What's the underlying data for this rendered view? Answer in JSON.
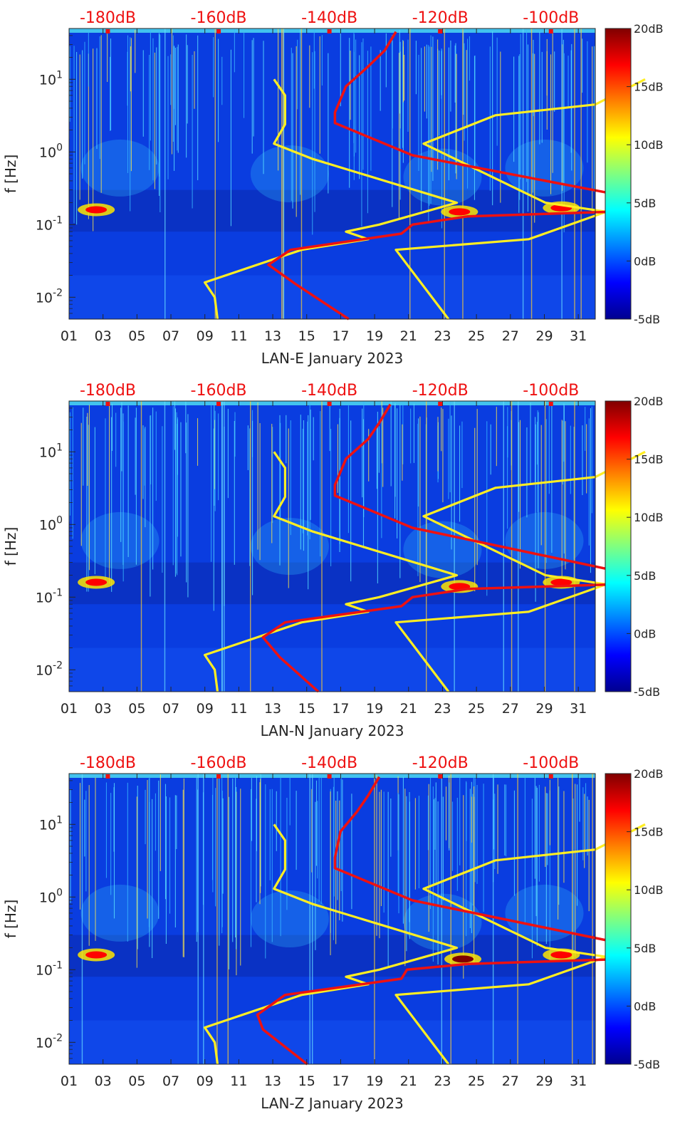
{
  "colors": {
    "background": "#0a3de0",
    "noise_line": "#ffffff",
    "low_noise_model": "#ffee22",
    "psd_curve": "#ee1111",
    "db_scale_text": "#ee1111",
    "axis_text": "#262626"
  },
  "colormap": {
    "stops": [
      "#00008f",
      "#0000ff",
      "#0080ff",
      "#00ffff",
      "#80ff80",
      "#ffff00",
      "#ff8000",
      "#ff0000",
      "#800000"
    ]
  },
  "chart_data": [
    {
      "type": "heatmap",
      "title": "",
      "xlabel": "LAN-E January 2023",
      "ylabel": "f [Hz]",
      "x_ticks": [
        "01",
        "03",
        "05",
        "07",
        "09",
        "11",
        "13",
        "15",
        "17",
        "19",
        "21",
        "23",
        "25",
        "27",
        "29",
        "31"
      ],
      "x_range": [
        1,
        32
      ],
      "y_ticks": [
        "10-2",
        "10-1",
        "100",
        "101"
      ],
      "y_range_hz": [
        0.005,
        50
      ],
      "colorbar": {
        "ticks": [
          "20dB",
          "15dB",
          "10dB",
          "5dB",
          "0dB",
          "-5dB"
        ],
        "range_db": [
          -5,
          20
        ]
      },
      "db_scale": {
        "ticks": [
          "-180dB",
          "-160dB",
          "-140dB",
          "-120dB",
          "-100dB"
        ],
        "range_db": [
          -187,
          -92
        ]
      },
      "hotspots": [
        {
          "day": 2.6,
          "freq": 0.16,
          "db": 18
        },
        {
          "day": 24.0,
          "freq": 0.15,
          "db": 18
        },
        {
          "day": 30.0,
          "freq": 0.17,
          "db": 16
        }
      ],
      "low_noise_model": {
        "left": [
          [
            -160.2,
            0.005
          ],
          [
            -160.7,
            0.01
          ],
          [
            -162.5,
            0.016
          ],
          [
            -145,
            0.045
          ],
          [
            -133,
            0.063
          ],
          [
            -137,
            0.08
          ],
          [
            -131,
            0.1
          ],
          [
            -117,
            0.2
          ],
          [
            -143,
            0.8
          ],
          [
            -150,
            1.3
          ],
          [
            -148,
            2.4
          ],
          [
            -148,
            6
          ],
          [
            -150,
            10
          ]
        ],
        "right": [
          [
            -118.5,
            0.005
          ],
          [
            -128,
            0.045
          ],
          [
            -104,
            0.063
          ],
          [
            -90,
            0.15
          ],
          [
            -101,
            0.2
          ],
          [
            -123,
            1.3
          ],
          [
            -110,
            3.2
          ],
          [
            -92,
            4.5
          ],
          [
            -83,
            10
          ]
        ]
      },
      "psd_curve": [
        [
          -136.5,
          0.005
        ],
        [
          -146,
          0.015
        ],
        [
          -151,
          0.028
        ],
        [
          -147,
          0.045
        ],
        [
          -127,
          0.075
        ],
        [
          -125,
          0.1
        ],
        [
          -115,
          0.13
        ],
        [
          -89,
          0.15
        ],
        [
          -87,
          0.25
        ],
        [
          -125,
          0.9
        ],
        [
          -139,
          2.5
        ],
        [
          -139,
          3.5
        ],
        [
          -137,
          8
        ],
        [
          -133,
          15
        ],
        [
          -130,
          25
        ],
        [
          -128,
          45
        ]
      ]
    },
    {
      "type": "heatmap",
      "title": "",
      "xlabel": "LAN-N January 2023",
      "ylabel": "f [Hz]",
      "x_ticks": [
        "01",
        "03",
        "05",
        "07",
        "09",
        "11",
        "13",
        "15",
        "17",
        "19",
        "21",
        "23",
        "25",
        "27",
        "29",
        "31"
      ],
      "x_range": [
        1,
        32
      ],
      "y_ticks": [
        "10-2",
        "10-1",
        "100",
        "101"
      ],
      "y_range_hz": [
        0.005,
        50
      ],
      "colorbar": {
        "ticks": [
          "20dB",
          "15dB",
          "10dB",
          "5dB",
          "0dB",
          "-5dB"
        ],
        "range_db": [
          -5,
          20
        ]
      },
      "db_scale": {
        "ticks": [
          "-180dB",
          "-160dB",
          "-140dB",
          "-120dB",
          "-100dB"
        ],
        "range_db": [
          -187,
          -92
        ]
      },
      "hotspots": [
        {
          "day": 2.6,
          "freq": 0.16,
          "db": 18
        },
        {
          "day": 24.0,
          "freq": 0.14,
          "db": 18
        },
        {
          "day": 30.0,
          "freq": 0.16,
          "db": 16
        }
      ],
      "low_noise_model": {
        "left": [
          [
            -160.2,
            0.005
          ],
          [
            -160.7,
            0.01
          ],
          [
            -162.5,
            0.016
          ],
          [
            -145,
            0.045
          ],
          [
            -133,
            0.063
          ],
          [
            -137,
            0.08
          ],
          [
            -131,
            0.1
          ],
          [
            -117,
            0.2
          ],
          [
            -143,
            0.8
          ],
          [
            -150,
            1.3
          ],
          [
            -148,
            2.4
          ],
          [
            -148,
            6
          ],
          [
            -150,
            10
          ]
        ],
        "right": [
          [
            -118.5,
            0.005
          ],
          [
            -128,
            0.045
          ],
          [
            -104,
            0.063
          ],
          [
            -90,
            0.15
          ],
          [
            -101,
            0.2
          ],
          [
            -123,
            1.3
          ],
          [
            -110,
            3.2
          ],
          [
            -92,
            4.5
          ],
          [
            -83,
            10
          ]
        ]
      },
      "psd_curve": [
        [
          -142,
          0.005
        ],
        [
          -149,
          0.015
        ],
        [
          -152,
          0.028
        ],
        [
          -148,
          0.045
        ],
        [
          -127,
          0.075
        ],
        [
          -125,
          0.1
        ],
        [
          -115,
          0.13
        ],
        [
          -88,
          0.15
        ],
        [
          -87,
          0.22
        ],
        [
          -125,
          0.9
        ],
        [
          -139,
          2.5
        ],
        [
          -139,
          3.5
        ],
        [
          -137,
          8
        ],
        [
          -133,
          15
        ],
        [
          -131,
          25
        ],
        [
          -129,
          45
        ]
      ]
    },
    {
      "type": "heatmap",
      "title": "",
      "xlabel": "LAN-Z January 2023",
      "ylabel": "f [Hz]",
      "x_ticks": [
        "01",
        "03",
        "05",
        "07",
        "09",
        "11",
        "13",
        "15",
        "17",
        "19",
        "21",
        "23",
        "25",
        "27",
        "29",
        "31"
      ],
      "x_range": [
        1,
        32
      ],
      "y_ticks": [
        "10-2",
        "10-1",
        "100",
        "101"
      ],
      "y_range_hz": [
        0.005,
        50
      ],
      "colorbar": {
        "ticks": [
          "20dB",
          "15dB",
          "10dB",
          "5dB",
          "0dB",
          "-5dB"
        ],
        "range_db": [
          -5,
          20
        ]
      },
      "db_scale": {
        "ticks": [
          "-180dB",
          "-160dB",
          "-140dB",
          "-120dB",
          "-100dB"
        ],
        "range_db": [
          -187,
          -92
        ]
      },
      "hotspots": [
        {
          "day": 2.6,
          "freq": 0.16,
          "db": 18
        },
        {
          "day": 24.2,
          "freq": 0.14,
          "db": 19
        },
        {
          "day": 30.0,
          "freq": 0.16,
          "db": 16
        }
      ],
      "low_noise_model": {
        "left": [
          [
            -160.2,
            0.005
          ],
          [
            -160.7,
            0.01
          ],
          [
            -162.5,
            0.016
          ],
          [
            -145,
            0.045
          ],
          [
            -133,
            0.063
          ],
          [
            -137,
            0.08
          ],
          [
            -131,
            0.1
          ],
          [
            -117,
            0.2
          ],
          [
            -143,
            0.8
          ],
          [
            -150,
            1.3
          ],
          [
            -148,
            2.4
          ],
          [
            -148,
            6
          ],
          [
            -150,
            10
          ]
        ],
        "right": [
          [
            -118.5,
            0.005
          ],
          [
            -128,
            0.045
          ],
          [
            -104,
            0.063
          ],
          [
            -90,
            0.15
          ],
          [
            -101,
            0.2
          ],
          [
            -123,
            1.3
          ],
          [
            -110,
            3.2
          ],
          [
            -92,
            4.5
          ],
          [
            -83,
            10
          ]
        ]
      },
      "psd_curve": [
        [
          -144,
          0.005
        ],
        [
          -152,
          0.015
        ],
        [
          -153,
          0.024
        ],
        [
          -148,
          0.045
        ],
        [
          -127,
          0.075
        ],
        [
          -126,
          0.1
        ],
        [
          -115,
          0.12
        ],
        [
          -87,
          0.14
        ],
        [
          -86,
          0.22
        ],
        [
          -125,
          0.9
        ],
        [
          -139,
          2.5
        ],
        [
          -139,
          3.5
        ],
        [
          -138,
          8
        ],
        [
          -135,
          15
        ],
        [
          -133,
          25
        ],
        [
          -131,
          45
        ]
      ]
    }
  ]
}
